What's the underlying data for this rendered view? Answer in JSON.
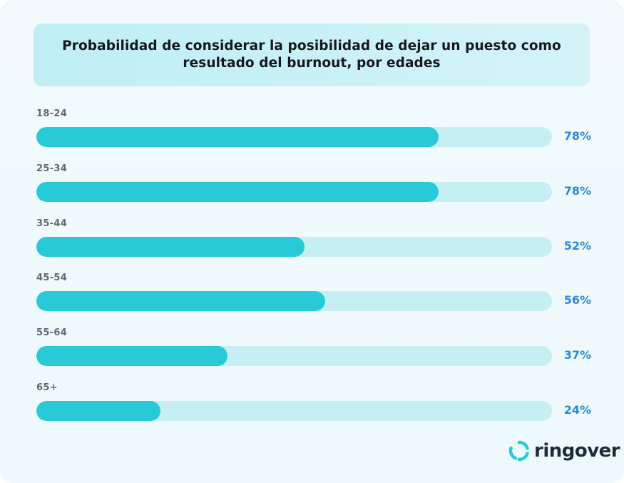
{
  "chart_data": {
    "type": "bar",
    "orientation": "horizontal",
    "title": "Probabilidad de considerar la posibilidad de dejar un puesto como resultado del burnout, por edades",
    "categories": [
      "18-24",
      "25-34",
      "35-44",
      "45-54",
      "55-64",
      "65+"
    ],
    "values": [
      78,
      78,
      52,
      56,
      37,
      24
    ],
    "value_labels": [
      "78%",
      "78%",
      "52%",
      "56%",
      "37%",
      "24%"
    ],
    "xlim": [
      0,
      100
    ],
    "unit": "%",
    "grid": false,
    "legend": "none",
    "colors": {
      "fill": "#29cad8",
      "track": "#c6eff4",
      "value_text": "#2a8ad6",
      "label_text": "#5c6b78"
    }
  },
  "brand": {
    "name": "ringover",
    "icon": "ringover-logo-icon",
    "color": "#29cad8"
  }
}
